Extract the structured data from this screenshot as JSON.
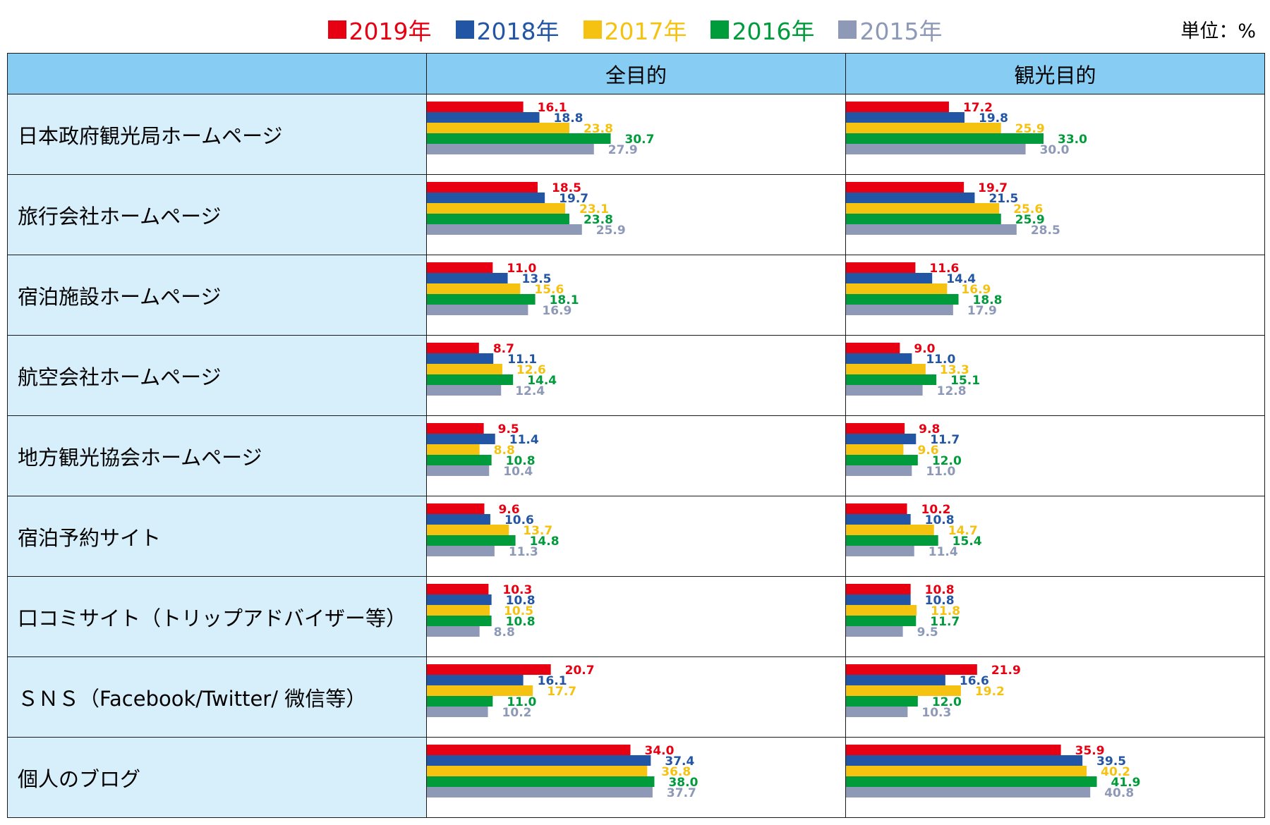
{
  "legend": {
    "items": [
      {
        "label": "2019年",
        "color": "#e60012"
      },
      {
        "label": "2018年",
        "color": "#2355a5"
      },
      {
        "label": "2017年",
        "color": "#f5c212"
      },
      {
        "label": "2016年",
        "color": "#009b3a"
      },
      {
        "label": "2015年",
        "color": "#8e99b8"
      }
    ]
  },
  "unit_label": "単位：%",
  "chart_data": {
    "type": "bar",
    "orientation": "horizontal",
    "columns": [
      "全目的",
      "観光目的"
    ],
    "categories": [
      "日本政府観光局ホームページ",
      "旅行会社ホームページ",
      "宿泊施設ホームページ",
      "航空会社ホームページ",
      "地方観光協会ホームページ",
      "宿泊予約サイト",
      "口コミサイト（トリップアドバイザー等）",
      "ＳＮＳ（Facebook/Twitter/ 微信等）",
      "個人のブログ"
    ],
    "series": [
      {
        "name": "2019年",
        "color": "#e60012",
        "all": [
          16.1,
          18.5,
          11.0,
          8.7,
          9.5,
          9.6,
          10.3,
          20.7,
          34.0
        ],
        "tourism": [
          17.2,
          19.7,
          11.6,
          9.0,
          9.8,
          10.2,
          10.8,
          21.9,
          35.9
        ]
      },
      {
        "name": "2018年",
        "color": "#2355a5",
        "all": [
          18.8,
          19.7,
          13.5,
          11.1,
          11.4,
          10.6,
          10.8,
          16.1,
          37.4
        ],
        "tourism": [
          19.8,
          21.5,
          14.4,
          11.0,
          11.7,
          10.8,
          10.8,
          16.6,
          39.5
        ]
      },
      {
        "name": "2017年",
        "color": "#f5c212",
        "all": [
          23.8,
          23.1,
          15.6,
          12.6,
          8.8,
          13.7,
          10.5,
          17.7,
          36.8
        ],
        "tourism": [
          25.9,
          25.6,
          16.9,
          13.3,
          9.6,
          14.7,
          11.8,
          19.2,
          40.2
        ]
      },
      {
        "name": "2016年",
        "color": "#009b3a",
        "all": [
          30.7,
          23.8,
          18.1,
          14.4,
          10.8,
          14.8,
          10.8,
          11.0,
          38.0
        ],
        "tourism": [
          33.0,
          25.9,
          18.8,
          15.1,
          12.0,
          15.4,
          11.7,
          12.0,
          41.9
        ]
      },
      {
        "name": "2015年",
        "color": "#8e99b8",
        "all": [
          27.9,
          25.9,
          16.9,
          12.4,
          10.4,
          11.3,
          8.8,
          10.2,
          37.7
        ],
        "tourism": [
          30.0,
          28.5,
          17.9,
          12.8,
          11.0,
          11.4,
          9.5,
          10.3,
          40.8
        ]
      }
    ],
    "xlim": [
      0,
      70
    ],
    "grid": false,
    "legend_position": "top-center"
  }
}
